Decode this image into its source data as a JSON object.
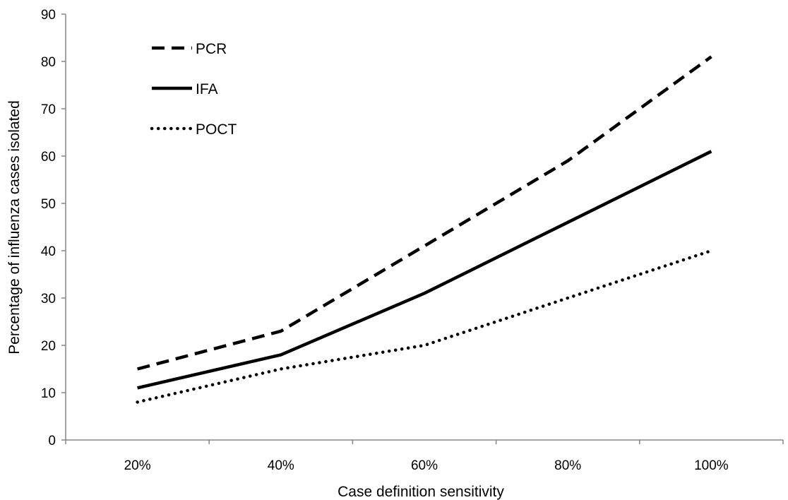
{
  "chart_data": {
    "type": "line",
    "title": "",
    "xlabel": "Case definition sensitivity",
    "ylabel": "Percentage of influenza cases isolated",
    "categories": [
      "20%",
      "40%",
      "60%",
      "80%",
      "100%"
    ],
    "ylim": [
      0,
      90
    ],
    "yticks": [
      0,
      10,
      20,
      30,
      40,
      50,
      60,
      70,
      80,
      90
    ],
    "grid": false,
    "legend_position": "top-left",
    "series": [
      {
        "name": "PCR",
        "values": [
          15,
          23,
          41,
          59,
          81
        ],
        "line_style": "dashed",
        "color": "#000000"
      },
      {
        "name": "IFA",
        "values": [
          11,
          18,
          31,
          46,
          61
        ],
        "line_style": "solid",
        "color": "#000000"
      },
      {
        "name": "POCT",
        "values": [
          8,
          15,
          20,
          30,
          40
        ],
        "line_style": "dotted",
        "color": "#000000"
      }
    ]
  }
}
